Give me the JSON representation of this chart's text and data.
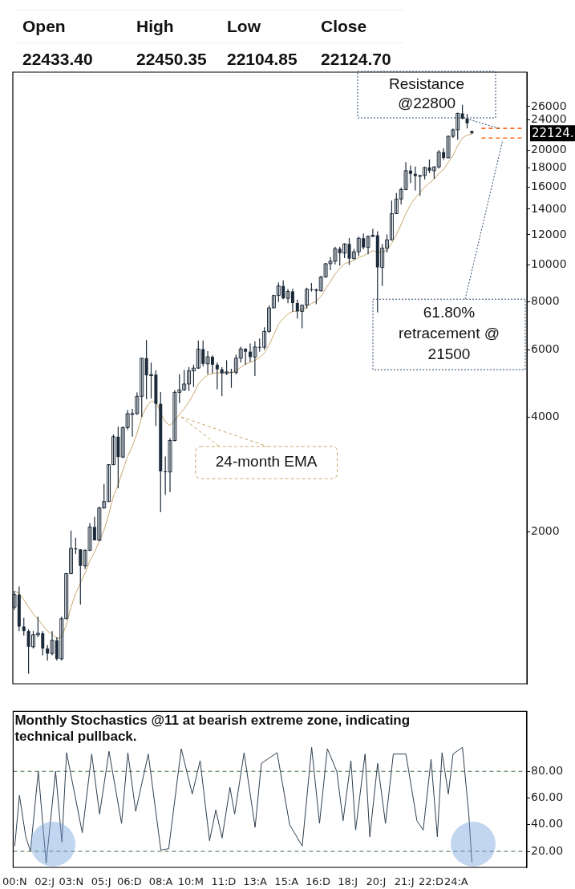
{
  "chart_data": [
    {
      "type": "candlestick",
      "color": "#1c2b3a",
      "log": true,
      "grid": false,
      "legend": "left",
      "tick_labels": "y",
      "xlim": [
        "2000-10",
        "2028-01"
      ],
      "ylim": [
        800,
        32000
      ],
      "yticks": [
        2000,
        4000,
        6000,
        8000,
        10000,
        12000,
        14000,
        16000,
        18000,
        20000,
        24000,
        26000
      ],
      "x": [
        "2000-11",
        "2001-02",
        "2001-05",
        "2001-08",
        "2001-11",
        "2002-02",
        "2002-05",
        "2002-08",
        "2002-11",
        "2003-02",
        "2003-05",
        "2003-08",
        "2003-11",
        "2004-02",
        "2004-05",
        "2004-08",
        "2004-11",
        "2005-02",
        "2005-05",
        "2005-08",
        "2005-11",
        "2006-02",
        "2006-05",
        "2006-08",
        "2006-11",
        "2007-02",
        "2007-05",
        "2007-08",
        "2007-11",
        "2008-02",
        "2008-05",
        "2008-08",
        "2008-11",
        "2009-02",
        "2009-05",
        "2009-08",
        "2009-11",
        "2010-02",
        "2010-05",
        "2010-08",
        "2010-11",
        "2011-02",
        "2011-05",
        "2011-08",
        "2011-11",
        "2012-02",
        "2012-05",
        "2012-08",
        "2012-11",
        "2013-02",
        "2013-05",
        "2013-08",
        "2013-11",
        "2014-02",
        "2014-05",
        "2014-08",
        "2014-11",
        "2015-02",
        "2015-05",
        "2015-08",
        "2015-11",
        "2016-02",
        "2016-05",
        "2016-08",
        "2016-11",
        "2017-02",
        "2017-05",
        "2017-08",
        "2017-11",
        "2018-02",
        "2018-05",
        "2018-08",
        "2018-11",
        "2019-02",
        "2019-05",
        "2019-08",
        "2019-11",
        "2020-02",
        "2020-05",
        "2020-08",
        "2020-11",
        "2021-02",
        "2021-05",
        "2021-08",
        "2021-11",
        "2022-02",
        "2022-05",
        "2022-08",
        "2022-11",
        "2023-02",
        "2023-05",
        "2023-08",
        "2023-11",
        "2024-02",
        "2024-05",
        "2024-08",
        "2024-11",
        "2025-02"
      ],
      "ohlc": [
        [
          1270,
          1400,
          1250,
          1370
        ],
        [
          1370,
          1440,
          1100,
          1130
        ],
        [
          1130,
          1190,
          1070,
          1100
        ],
        [
          1100,
          1110,
          850,
          1000
        ],
        [
          1000,
          1100,
          990,
          1075
        ],
        [
          1075,
          1200,
          1060,
          1085
        ],
        [
          1085,
          1100,
          950,
          990
        ],
        [
          990,
          1010,
          920,
          960
        ],
        [
          960,
          1100,
          950,
          1040
        ],
        [
          1040,
          1060,
          920,
          930
        ],
        [
          930,
          1200,
          920,
          1185
        ],
        [
          1185,
          1560,
          1180,
          1555
        ],
        [
          1555,
          2015,
          1550,
          1810
        ],
        [
          1810,
          1930,
          1750,
          1800
        ],
        [
          1800,
          1800,
          1290,
          1630
        ],
        [
          1630,
          1800,
          1600,
          1790
        ],
        [
          1790,
          2110,
          1780,
          2060
        ],
        [
          2060,
          2190,
          1900,
          1900
        ],
        [
          1900,
          2330,
          1890,
          2310
        ],
        [
          2310,
          2670,
          2300,
          2400
        ],
        [
          2400,
          3010,
          2400,
          3000
        ],
        [
          3000,
          3600,
          2990,
          3550
        ],
        [
          3550,
          3770,
          2600,
          3140
        ],
        [
          3140,
          3780,
          3120,
          3750
        ],
        [
          3750,
          4170,
          3700,
          4080
        ],
        [
          4080,
          4200,
          3550,
          4080
        ],
        [
          4080,
          4640,
          4050,
          4530
        ],
        [
          4530,
          5700,
          4000,
          5700
        ],
        [
          5700,
          6360,
          4450,
          5140
        ],
        [
          5140,
          5550,
          4470,
          5160
        ],
        [
          5160,
          5300,
          3790,
          4330
        ],
        [
          4330,
          4650,
          2250,
          2880
        ],
        [
          2880,
          3150,
          2500,
          2870
        ],
        [
          2870,
          3520,
          2540,
          3470
        ],
        [
          3470,
          4700,
          3450,
          4640
        ],
        [
          4640,
          5180,
          4350,
          4710
        ],
        [
          4710,
          5310,
          4680,
          4880
        ],
        [
          4880,
          5400,
          4680,
          5280
        ],
        [
          5280,
          5480,
          4790,
          5370
        ],
        [
          5370,
          6340,
          5340,
          6020
        ],
        [
          6020,
          6340,
          5420,
          5510
        ],
        [
          5510,
          5950,
          5180,
          5750
        ],
        [
          5750,
          5800,
          5200,
          5480
        ],
        [
          5480,
          5550,
          4720,
          5330
        ],
        [
          5330,
          5400,
          4530,
          5200
        ],
        [
          5200,
          5630,
          5150,
          5250
        ],
        [
          5250,
          5350,
          4770,
          5230
        ],
        [
          5230,
          5820,
          5170,
          5700
        ],
        [
          5700,
          6110,
          5550,
          6030
        ],
        [
          6030,
          6060,
          5480,
          5930
        ],
        [
          5930,
          6230,
          5570,
          5740
        ],
        [
          5740,
          6310,
          5120,
          6100
        ],
        [
          6100,
          6420,
          5930,
          6090
        ],
        [
          6090,
          6870,
          6000,
          6700
        ],
        [
          6700,
          7840,
          6640,
          7720
        ],
        [
          7720,
          8330,
          7720,
          8320
        ],
        [
          8320,
          8990,
          8000,
          8810
        ],
        [
          8810,
          9120,
          8140,
          8180
        ],
        [
          8180,
          8650,
          7940,
          8530
        ],
        [
          8530,
          8660,
          7540,
          7950
        ],
        [
          7950,
          8120,
          7240,
          7560
        ],
        [
          7560,
          7850,
          6830,
          7850
        ],
        [
          7850,
          8720,
          7680,
          8640
        ],
        [
          8640,
          8970,
          8520,
          8630
        ],
        [
          8630,
          8670,
          7890,
          8560
        ],
        [
          8560,
          9370,
          8530,
          9300
        ],
        [
          9300,
          10110,
          9270,
          10080
        ],
        [
          10080,
          10490,
          9690,
          10230
        ],
        [
          10230,
          11170,
          10030,
          11030
        ],
        [
          11030,
          11170,
          9950,
          10740
        ],
        [
          10740,
          11400,
          10420,
          11360
        ],
        [
          11360,
          11760,
          10000,
          10390
        ],
        [
          10390,
          11000,
          10330,
          10830
        ],
        [
          10830,
          11860,
          10580,
          11750
        ],
        [
          11750,
          12100,
          10990,
          11120
        ],
        [
          11120,
          11950,
          10670,
          11880
        ],
        [
          11880,
          12430,
          11830,
          11960
        ],
        [
          11960,
          12250,
          7510,
          9860
        ],
        [
          9860,
          11340,
          8810,
          11070
        ],
        [
          11070,
          12030,
          10790,
          11640
        ],
        [
          11640,
          14750,
          11600,
          13630
        ],
        [
          13630,
          15430,
          13600,
          14890
        ],
        [
          14890,
          15960,
          14420,
          15760
        ],
        [
          15760,
          18600,
          15700,
          17670
        ],
        [
          17670,
          18210,
          16410,
          17340
        ],
        [
          17340,
          18110,
          15670,
          17100
        ],
        [
          17100,
          17190,
          15180,
          17160
        ],
        [
          17160,
          18100,
          16750,
          18010
        ],
        [
          18010,
          18890,
          17400,
          17660
        ],
        [
          17660,
          18130,
          16830,
          18070
        ],
        [
          18070,
          19990,
          17890,
          19750
        ],
        [
          19750,
          20220,
          18840,
          19080
        ],
        [
          19080,
          21830,
          19060,
          21730
        ],
        [
          21730,
          22780,
          21530,
          22600
        ],
        [
          22600,
          25080,
          21280,
          24950
        ],
        [
          24950,
          26280,
          24070,
          24200
        ],
        [
          24200,
          24860,
          22790,
          23510
        ],
        [
          22433.4,
          22450.35,
          22104.85,
          22124.7
        ]
      ],
      "series": [
        {
          "type": "line",
          "name": "24-month EMA",
          "color": "#c9a66b",
          "x": [
            "2000-11",
            "2001-02",
            "2001-05",
            "2001-08",
            "2001-11",
            "2002-02",
            "2002-05",
            "2002-08",
            "2002-11",
            "2003-02",
            "2003-05",
            "2003-08",
            "2003-11",
            "2004-02",
            "2004-05",
            "2004-08",
            "2004-11",
            "2005-02",
            "2005-05",
            "2005-08",
            "2005-11",
            "2006-02",
            "2006-05",
            "2006-08",
            "2006-11",
            "2007-02",
            "2007-05",
            "2007-08",
            "2007-11",
            "2008-02",
            "2008-05",
            "2008-08",
            "2008-11",
            "2009-02",
            "2009-05",
            "2009-08",
            "2009-11",
            "2010-02",
            "2010-05",
            "2010-08",
            "2010-11",
            "2011-02",
            "2011-05",
            "2011-08",
            "2011-11",
            "2012-02",
            "2012-05",
            "2012-08",
            "2012-11",
            "2013-02",
            "2013-05",
            "2013-08",
            "2013-11",
            "2014-02",
            "2014-05",
            "2014-08",
            "2014-11",
            "2015-02",
            "2015-05",
            "2015-08",
            "2015-11",
            "2016-02",
            "2016-05",
            "2016-08",
            "2016-11",
            "2017-02",
            "2017-05",
            "2017-08",
            "2017-11",
            "2018-02",
            "2018-05",
            "2018-08",
            "2018-11",
            "2019-02",
            "2019-05",
            "2019-08",
            "2019-11",
            "2020-02",
            "2020-05",
            "2020-08",
            "2020-11",
            "2021-02",
            "2021-05",
            "2021-08",
            "2021-11",
            "2022-02",
            "2022-05",
            "2022-08",
            "2022-11",
            "2023-02",
            "2023-05",
            "2023-08",
            "2023-11",
            "2024-02",
            "2024-05",
            "2024-08",
            "2024-11",
            "2025-02"
          ],
          "values": [
            1400,
            1380,
            1330,
            1270,
            1220,
            1180,
            1140,
            1100,
            1080,
            1050,
            1060,
            1140,
            1270,
            1380,
            1470,
            1560,
            1680,
            1770,
            1890,
            2020,
            2220,
            2480,
            2660,
            2900,
            3150,
            3350,
            3620,
            4000,
            4250,
            4400,
            4380,
            4100,
            3880,
            3800,
            3920,
            4060,
            4200,
            4380,
            4600,
            4880,
            5030,
            5150,
            5200,
            5220,
            5220,
            5230,
            5220,
            5280,
            5400,
            5500,
            5560,
            5630,
            5720,
            5880,
            6170,
            6560,
            7000,
            7240,
            7450,
            7550,
            7580,
            7620,
            7780,
            7930,
            8040,
            8280,
            8680,
            9040,
            9470,
            9780,
            10080,
            10170,
            10260,
            10480,
            10570,
            10740,
            10900,
            10800,
            10820,
            10930,
            11400,
            12020,
            12760,
            13640,
            14390,
            14980,
            15460,
            16010,
            16400,
            16760,
            17380,
            17780,
            18570,
            19350,
            20540,
            21510,
            21900,
            22000
          ]
        }
      ],
      "ref_lines": [
        {
          "axis": "y",
          "value": 22800,
          "label": "Resistance @22800",
          "color": "#ff6a1a",
          "line_style": "dashed"
        },
        {
          "axis": "y",
          "value": 21500,
          "label": "61.80% retracement @ 21500",
          "color": "#ff6a1a",
          "line_style": "dashed"
        }
      ],
      "annotations": [
        "Open",
        "High",
        "Low",
        "Close",
        "22433.40",
        "22450.35",
        "22104.85",
        "22124.70",
        "22124."
      ]
    },
    {
      "type": "line",
      "color": "#2f3f4f",
      "grid": false,
      "xlim": [
        "2000-10",
        "2028-01"
      ],
      "ylim": [
        8,
        125
      ],
      "xticks": [
        {
          "value": "2000-11",
          "label": "00:N"
        },
        {
          "value": "2002-06",
          "label": "02:J"
        },
        {
          "value": "2003-11",
          "label": "03:N"
        },
        {
          "value": "2005-06",
          "label": "05:J"
        },
        {
          "value": "2006-12",
          "label": "06:D"
        },
        {
          "value": "2008-08",
          "label": "08:A"
        },
        {
          "value": "2010-03",
          "label": "10:M"
        },
        {
          "value": "2011-12",
          "label": "11:D"
        },
        {
          "value": "2013-08",
          "label": "13:A"
        },
        {
          "value": "2015-04",
          "label": "15:A"
        },
        {
          "value": "2016-12",
          "label": "16:D"
        },
        {
          "value": "2018-07",
          "label": "18:J"
        },
        {
          "value": "2020-01",
          "label": "20:J"
        },
        {
          "value": "2021-07",
          "label": "21:J"
        },
        {
          "value": "2022-12",
          "label": "22:D"
        },
        {
          "value": "2024-04",
          "label": "24:A"
        }
      ],
      "yticks": [
        {
          "value": 20,
          "label": "20.00"
        },
        {
          "value": 40,
          "label": "40.00"
        },
        {
          "value": 60,
          "label": "60.00"
        },
        {
          "value": 80,
          "label": "80.00"
        }
      ],
      "x": [
        "2000-11",
        "2001-02",
        "2001-06",
        "2001-09",
        "2002-02",
        "2002-07",
        "2003-01",
        "2003-05",
        "2003-08",
        "2004-06",
        "2004-12",
        "2005-05",
        "2005-11",
        "2006-07",
        "2006-11",
        "2007-04",
        "2007-12",
        "2008-08",
        "2009-01",
        "2009-09",
        "2010-04",
        "2010-09",
        "2011-03",
        "2011-07",
        "2011-11",
        "2012-04",
        "2012-07",
        "2013-01",
        "2013-08",
        "2013-12",
        "2014-10",
        "2015-06",
        "2016-02",
        "2016-08",
        "2017-01",
        "2017-06",
        "2017-12",
        "2018-04",
        "2018-09",
        "2018-12",
        "2019-06",
        "2019-09",
        "2020-02",
        "2020-07",
        "2020-12",
        "2021-08",
        "2022-03",
        "2022-07",
        "2022-12",
        "2023-04",
        "2023-07",
        "2023-11",
        "2024-02",
        "2024-08",
        "2024-12",
        "2025-02"
      ],
      "values": [
        24,
        62,
        31,
        20,
        80,
        11,
        80,
        27,
        94,
        34,
        93,
        48,
        95,
        41,
        94,
        50,
        93,
        21,
        22,
        97,
        63,
        88,
        28,
        51,
        30,
        68,
        48,
        94,
        38,
        86,
        94,
        40,
        24,
        98,
        41,
        97,
        80,
        43,
        88,
        36,
        93,
        31,
        86,
        41,
        93,
        93,
        43,
        36,
        89,
        31,
        94,
        63,
        93,
        98,
        48,
        12
      ],
      "ref_lines": [
        {
          "axis": "y",
          "value": 80,
          "color": "#3d6b3d",
          "line_style": "dashed"
        },
        {
          "axis": "y",
          "value": 20,
          "color": "#3d6b3d",
          "line_style": "dashed"
        }
      ],
      "annotations": [
        "Monthly Stochastics @11 at bearish extreme zone, indicating technical pullback."
      ]
    }
  ]
}
